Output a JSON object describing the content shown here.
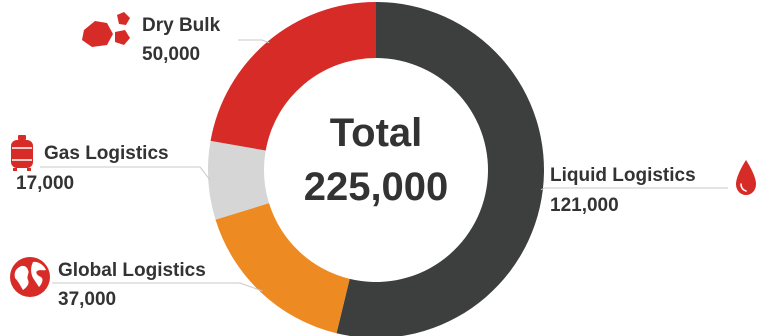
{
  "chart_data": {
    "type": "pie",
    "variant": "donut",
    "center_label": "Total",
    "center_value": "225,000",
    "total": 225000,
    "slices": [
      {
        "name": "Liquid Logistics",
        "value": 121000,
        "label": "121,000",
        "color": "#3d3e3e",
        "icon": "drop-icon"
      },
      {
        "name": "Global Logistics",
        "value": 37000,
        "label": "37,000",
        "color": "#ee8a22",
        "icon": "globe-icon"
      },
      {
        "name": "Gas Logistics",
        "value": 17000,
        "label": "17,000",
        "color": "#d6d6d6",
        "icon": "gas-cylinder-icon"
      },
      {
        "name": "Dry Bulk",
        "value": 50000,
        "label": "50,000",
        "color": "#d62b27",
        "icon": "rocks-icon"
      }
    ],
    "start": "top",
    "direction": "clockwise",
    "accent_color": "#d62b27"
  }
}
